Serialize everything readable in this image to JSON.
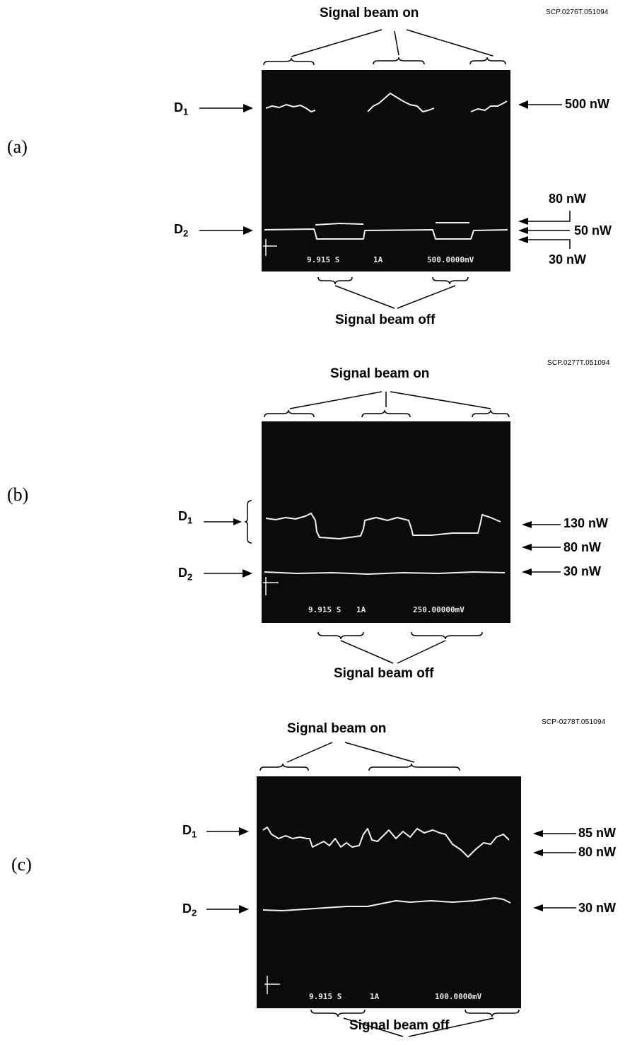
{
  "panels": [
    {
      "tag": "(a)",
      "code": "SCP.0276T.051094",
      "on_label": "Signal beam on",
      "off_label": "Signal beam off",
      "d1": "D",
      "d1_sub": "1",
      "d2": "D",
      "d2_sub": "2",
      "readout": [
        "9.915 S",
        "1A",
        "500.0000mV"
      ],
      "right_labels": [
        "500 nW",
        "80 nW",
        "50 nW",
        "30 nW"
      ]
    },
    {
      "tag": "(b)",
      "code": "SCP.0277T.051094",
      "on_label": "Signal beam on",
      "off_label": "Signal beam off",
      "d1": "D",
      "d1_sub": "1",
      "d2": "D",
      "d2_sub": "2",
      "readout": [
        "9.915 S",
        "1A",
        "250.00000mV"
      ],
      "right_labels": [
        "130 nW",
        "80 nW",
        "30 nW"
      ]
    },
    {
      "tag": "(c)",
      "code": "SCP-0278T.051094",
      "on_label": "Signal beam on",
      "off_label": "Signal beam off",
      "d1": "D",
      "d1_sub": "1",
      "d2": "D",
      "d2_sub": "2",
      "readout": [
        "9.915 S",
        "1A",
        "100.0000mV"
      ],
      "right_labels": [
        "85 nW",
        "80 nW",
        "30 nW"
      ]
    }
  ]
}
